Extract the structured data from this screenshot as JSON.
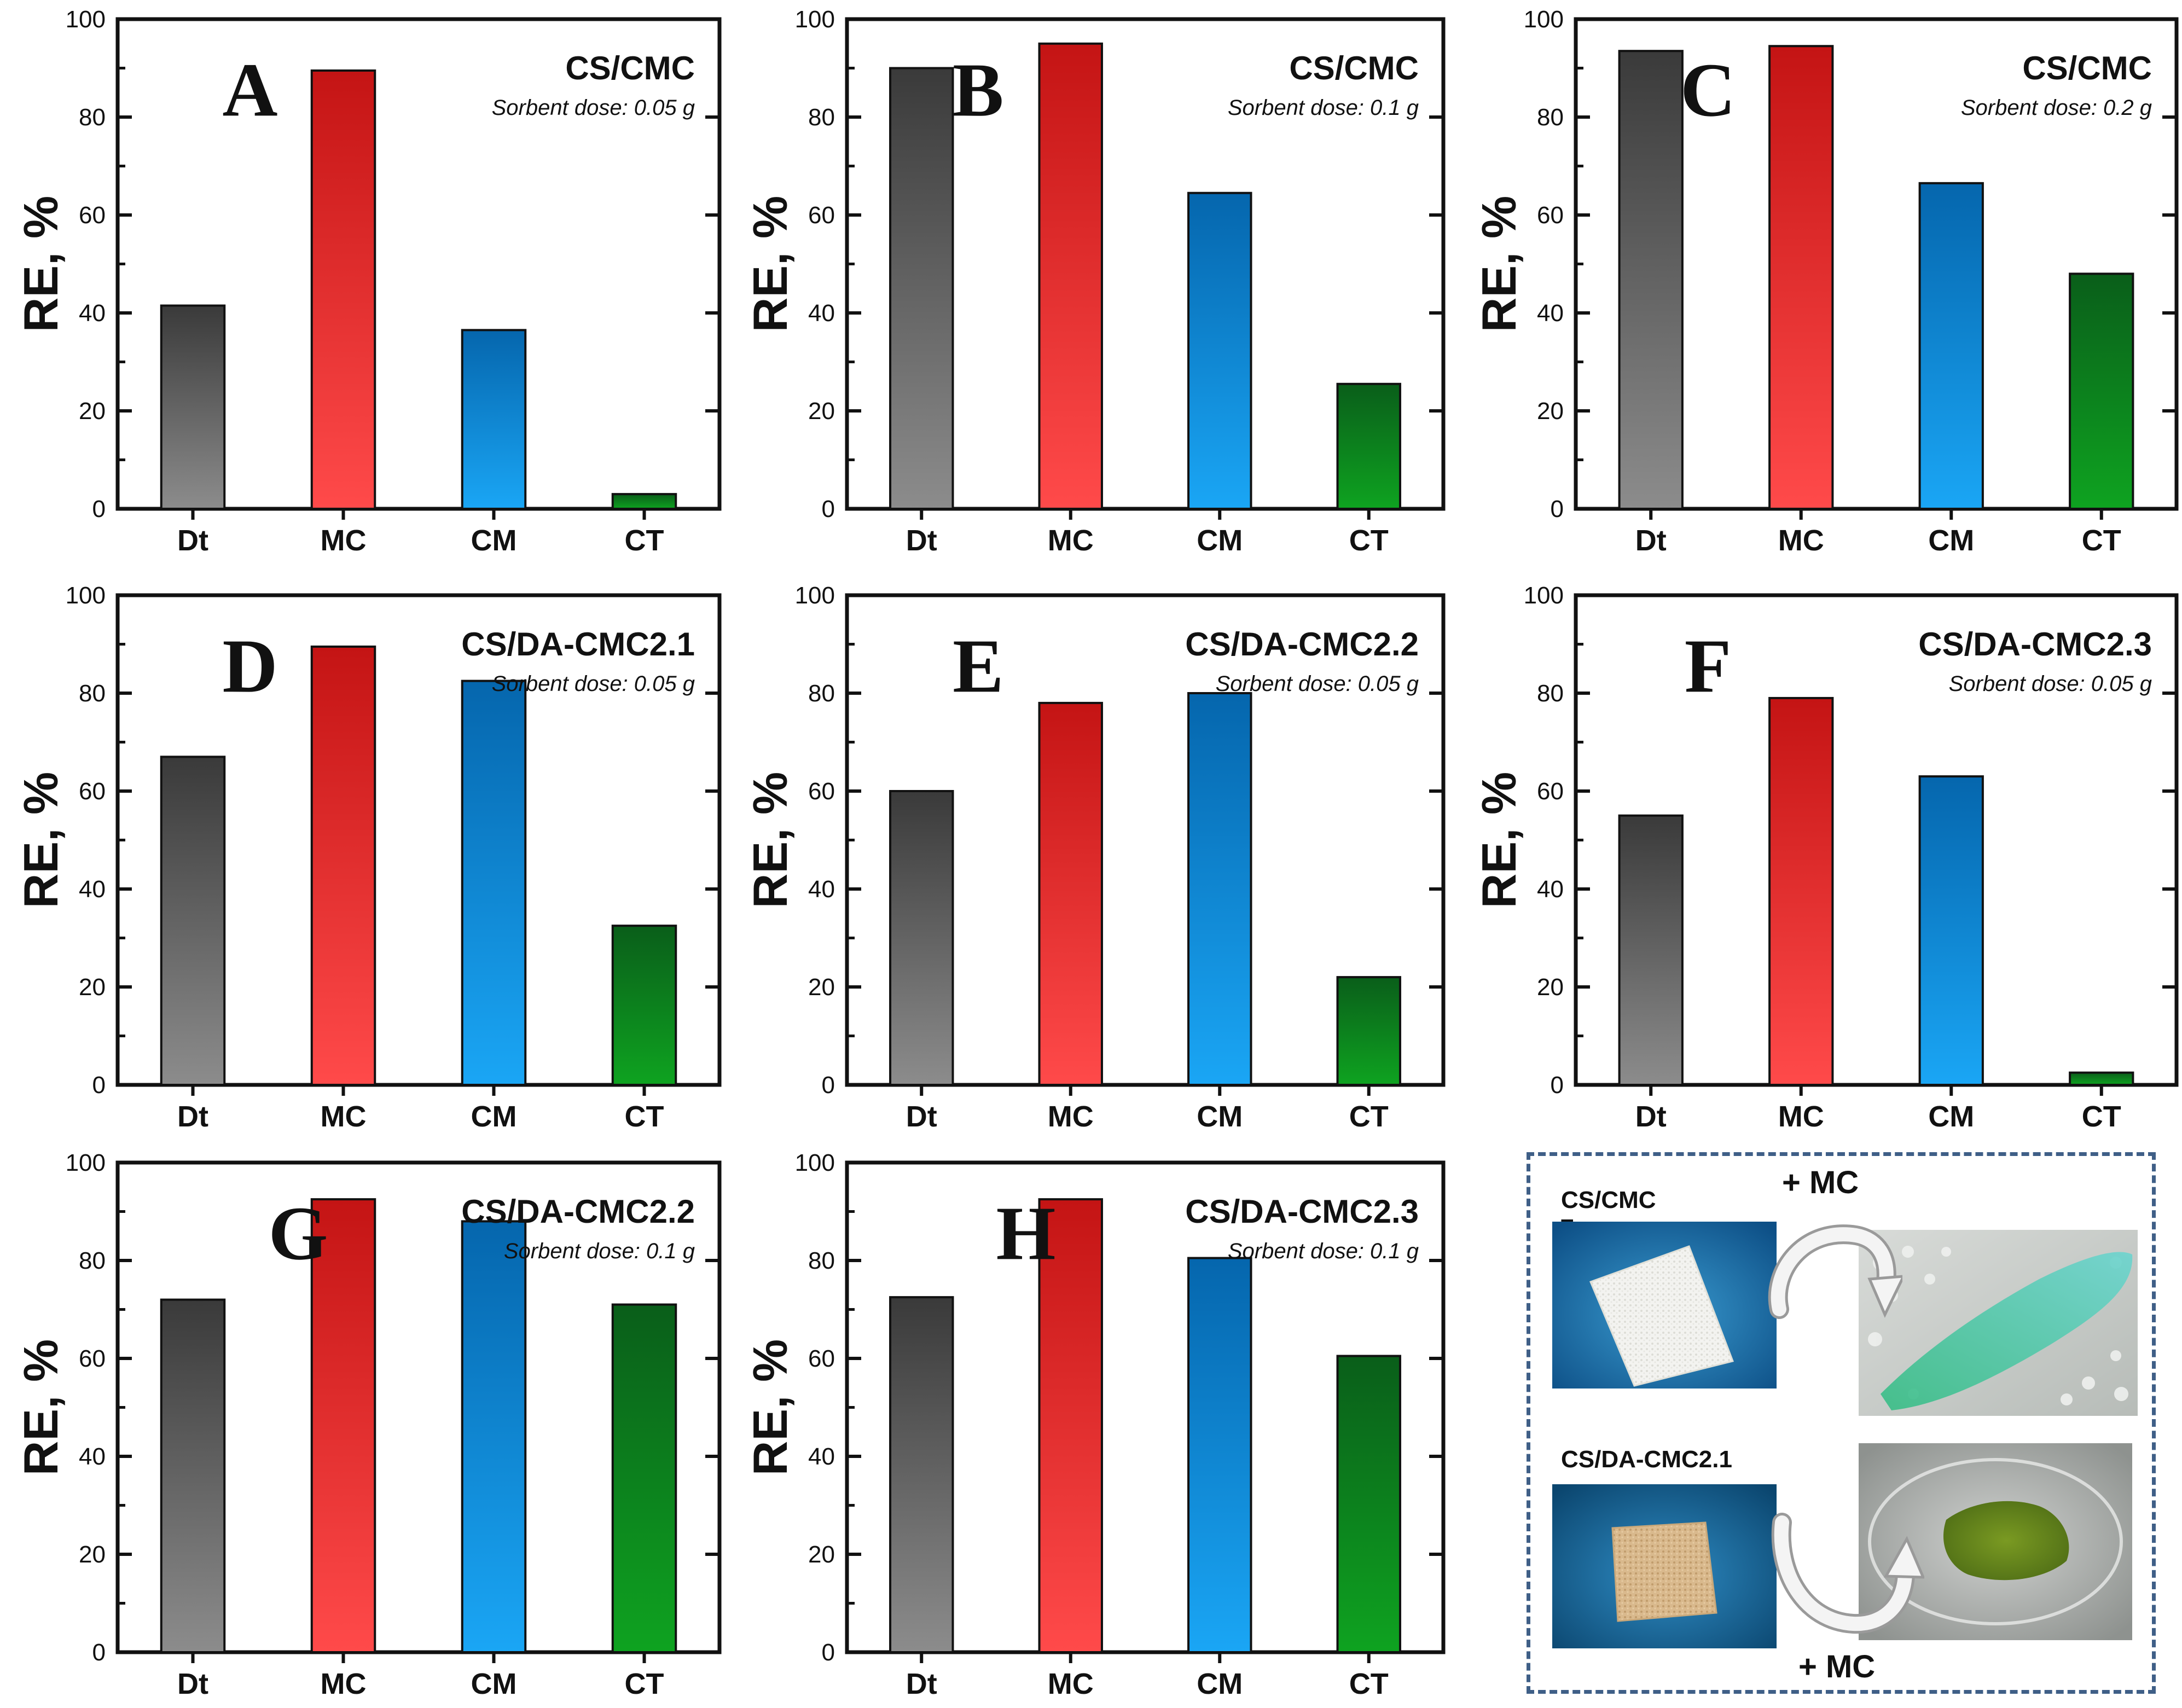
{
  "figure": {
    "y_axis_label": "RE, %",
    "categories": [
      "Dt",
      "MC",
      "CM",
      "CT"
    ],
    "colors": {
      "Dt": [
        "#3a3a3a",
        "#8c8c8c"
      ],
      "MC": [
        "#c41414",
        "#ff4a4a"
      ],
      "CM": [
        "#0566ad",
        "#1aa6f5"
      ],
      "CT": [
        "#0a5e1a",
        "#0ea320"
      ]
    }
  },
  "chart_data": [
    {
      "type": "bar",
      "panel": "A",
      "title": "CS/CMC",
      "subtitle": "Sorbent dose: 0.05 g",
      "categories": [
        "Dt",
        "MC",
        "CM",
        "CT"
      ],
      "values": [
        41.5,
        89.5,
        36.5,
        3
      ],
      "ylabel": "RE, %",
      "ylim": [
        0,
        100
      ],
      "yticks": [
        0,
        20,
        40,
        60,
        80,
        100
      ]
    },
    {
      "type": "bar",
      "panel": "B",
      "title": "CS/CMC",
      "subtitle": "Sorbent dose: 0.1 g",
      "categories": [
        "Dt",
        "MC",
        "CM",
        "CT"
      ],
      "values": [
        90,
        95,
        64.5,
        25.5
      ],
      "ylabel": "RE, %",
      "ylim": [
        0,
        100
      ],
      "yticks": [
        0,
        20,
        40,
        60,
        80,
        100
      ]
    },
    {
      "type": "bar",
      "panel": "C",
      "title": "CS/CMC",
      "subtitle": "Sorbent dose: 0.2 g",
      "categories": [
        "Dt",
        "MC",
        "CM",
        "CT"
      ],
      "values": [
        93.5,
        94.5,
        66.5,
        48
      ],
      "ylabel": "RE, %",
      "ylim": [
        0,
        100
      ],
      "yticks": [
        0,
        20,
        40,
        60,
        80,
        100
      ]
    },
    {
      "type": "bar",
      "panel": "D",
      "title": "CS/DA-CMC2.1",
      "subtitle": "Sorbent dose: 0.05 g",
      "categories": [
        "Dt",
        "MC",
        "CM",
        "CT"
      ],
      "values": [
        67,
        89.5,
        82.5,
        32.5
      ],
      "ylabel": "RE, %",
      "ylim": [
        0,
        100
      ],
      "yticks": [
        0,
        20,
        40,
        60,
        80,
        100
      ]
    },
    {
      "type": "bar",
      "panel": "E",
      "title": "CS/DA-CMC2.2",
      "subtitle": "Sorbent dose: 0.05 g",
      "categories": [
        "Dt",
        "MC",
        "CM",
        "CT"
      ],
      "values": [
        60,
        78,
        80,
        22
      ],
      "ylabel": "RE, %",
      "ylim": [
        0,
        100
      ],
      "yticks": [
        0,
        20,
        40,
        60,
        80,
        100
      ]
    },
    {
      "type": "bar",
      "panel": "F",
      "title": "CS/DA-CMC2.3",
      "subtitle": "Sorbent dose: 0.05 g",
      "categories": [
        "Dt",
        "MC",
        "CM",
        "CT"
      ],
      "values": [
        55,
        79,
        63,
        2.5
      ],
      "ylabel": "RE, %",
      "ylim": [
        0,
        100
      ],
      "yticks": [
        0,
        20,
        40,
        60,
        80,
        100
      ]
    },
    {
      "type": "bar",
      "panel": "G",
      "title": "CS/DA-CMC2.2",
      "subtitle": "Sorbent dose: 0.1 g",
      "categories": [
        "Dt",
        "MC",
        "CM",
        "CT"
      ],
      "values": [
        72,
        92.5,
        88,
        71
      ],
      "ylabel": "RE, %",
      "ylim": [
        0,
        100
      ],
      "yticks": [
        0,
        20,
        40,
        60,
        80,
        100
      ]
    },
    {
      "type": "bar",
      "panel": "H",
      "title": "CS/DA-CMC2.3",
      "subtitle": "Sorbent dose: 0.1 g",
      "categories": [
        "Dt",
        "MC",
        "CM",
        "CT"
      ],
      "values": [
        72.5,
        92.5,
        80.5,
        60.5
      ],
      "ylabel": "RE, %",
      "ylim": [
        0,
        100
      ],
      "yticks": [
        0,
        20,
        40,
        60,
        80,
        100
      ]
    }
  ],
  "panel_I": {
    "letter": "I",
    "top_label": "CS/CMC",
    "bottom_label": "CS/DA-CMC2.1",
    "top_arrow_label": "+ MC",
    "bottom_arrow_label": "+ MC"
  }
}
